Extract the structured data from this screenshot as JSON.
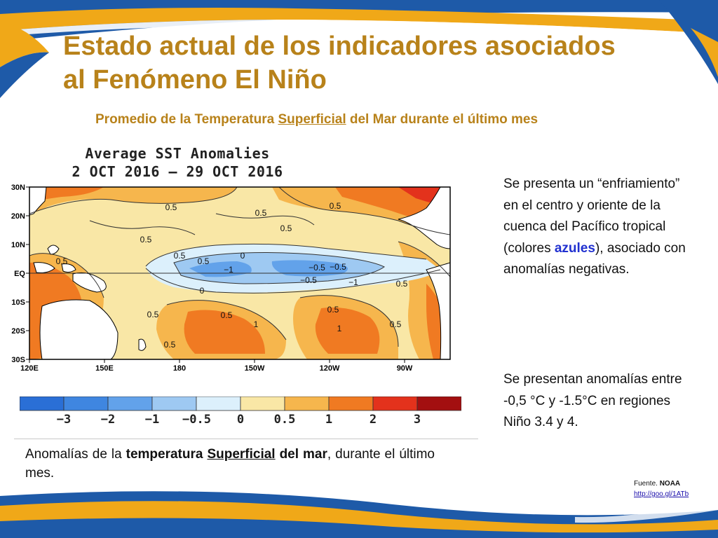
{
  "slide": {
    "title_line1": "Estado actual de los indicadores asociados",
    "title_line2": "al Fenómeno El Niño",
    "subtitle_pre": "Promedio de la Temperatura ",
    "subtitle_underlined": "Superficial",
    "subtitle_post": " del Mar durante el último mes"
  },
  "map": {
    "title_line1": "Average SST Anomalies",
    "title_line2": "2 OCT 2016 — 29 OCT 2016",
    "lat_labels": [
      "30N",
      "20N",
      "10N",
      "EQ",
      "10S",
      "20S",
      "30S"
    ],
    "lon_labels": [
      "120E",
      "150E",
      "180",
      "150W",
      "120W",
      "90W"
    ],
    "contour_labels": [
      "0.5",
      "0.5",
      "0.5",
      "0.5",
      "0.5",
      "0.5",
      "0.5",
      "0.5",
      "0",
      "−1",
      "−0.5",
      "−0.5",
      "−0.5",
      "−1",
      "0",
      "0.5",
      "0.5",
      "0.5",
      "1",
      "0.5",
      "1",
      "0.5",
      "0.5"
    ]
  },
  "color_scale": {
    "labels": [
      "−3",
      "−2",
      "−1",
      "−0.5",
      "0",
      "0.5",
      "1",
      "2",
      "3"
    ],
    "colors": [
      "#2a6fd6",
      "#3f86e0",
      "#62a2ea",
      "#9ec9f2",
      "#dcf0fc",
      "#f9e7a6",
      "#f6b64d",
      "#f07a22",
      "#e3321c",
      "#a30f10"
    ]
  },
  "caption": {
    "pre": "Anomalías de la ",
    "bold1": "temperatura",
    "bold_underlined": "Superficial",
    "bold2": "del mar",
    "post": ", durante el último mes."
  },
  "right_panel": {
    "para1_pre": "Se presenta un “enfriamiento” en el centro y oriente de la cuenca del Pacífico tropical (colores ",
    "para1_highlight": "azules",
    "para1_post": "), asociado con anomalías negativas.",
    "para2": "Se presentan anomalías entre -0,5 °C y -1.5°C en regiones Niño 3.4 y 4."
  },
  "source": {
    "label": "Fuente. ",
    "org": "NOAA",
    "link": "http://goo.gl/1ATb"
  },
  "colors": {
    "title": "#b8821a",
    "highlight": "#2030d0",
    "frame_blue": "#1e5aa8",
    "frame_gold": "#f0a818"
  }
}
